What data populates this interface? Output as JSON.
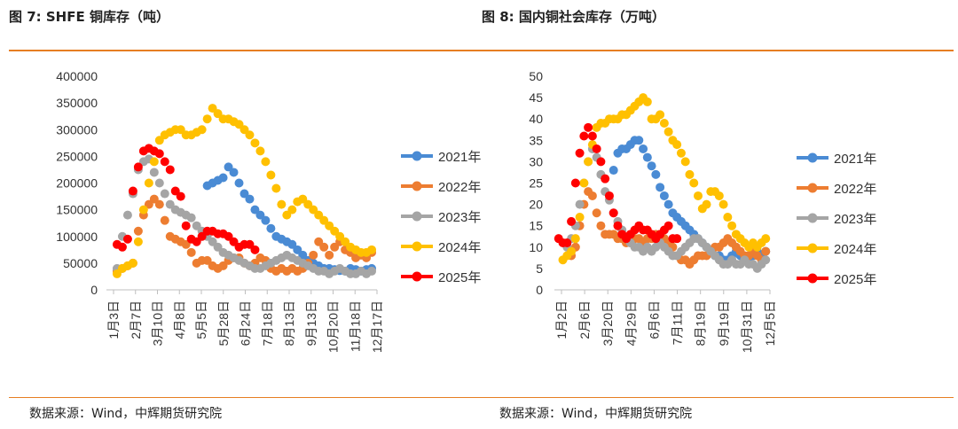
{
  "left_title": "图 7: SHFE 铜库存（吨）",
  "right_title": "图 8: 国内铜社会库存（万吨）",
  "left_source": "数据来源：Wind，中辉期货研究院",
  "right_source": "数据来源：Wind，中辉期货研究院",
  "colors": {
    "2021年": "#4a8bd4",
    "2022年": "#ed7d31",
    "2023年": "#a5a5a5",
    "2024年": "#ffc000",
    "2025年": "#ff0000",
    "rule": "#e67e22"
  },
  "chart_data": [
    {
      "type": "scatter",
      "title": "图 7: SHFE 铜库存（吨）",
      "ylim": [
        0,
        400000
      ],
      "yticks": [
        "400000",
        "350000",
        "300000",
        "250000",
        "200000",
        "150000",
        "100000",
        "50000",
        "0"
      ],
      "xticks": [
        "1月3日",
        "2月7日",
        "3月10日",
        "4月8日",
        "5月5日",
        "5月28日",
        "6月24日",
        "7月18日",
        "8月13日",
        "9月13日",
        "10月20日",
        "11月18日",
        "12月17日"
      ],
      "x_range": [
        1,
        52
      ],
      "legend": "right",
      "series": [
        {
          "name": "2021年",
          "x": [
            20,
            21,
            22,
            23,
            24,
            25,
            26,
            27,
            28,
            29,
            30,
            31,
            32,
            33,
            34,
            35,
            36,
            37,
            38,
            39,
            40,
            41,
            42,
            43,
            44,
            45,
            46,
            47,
            48,
            49,
            50,
            51
          ],
          "y": [
            195000,
            200000,
            205000,
            210000,
            230000,
            220000,
            200000,
            180000,
            170000,
            150000,
            140000,
            130000,
            115000,
            100000,
            95000,
            90000,
            85000,
            75000,
            65000,
            55000,
            50000,
            45000,
            40000,
            40000,
            38000,
            36000,
            35000,
            40000,
            38000,
            35000,
            38000,
            40000
          ]
        },
        {
          "name": "2022年",
          "x": [
            3,
            4,
            5,
            6,
            7,
            8,
            9,
            10,
            11,
            12,
            13,
            14,
            15,
            16,
            17,
            18,
            19,
            20,
            21,
            22,
            23,
            24,
            25,
            26,
            27,
            28,
            29,
            30,
            31,
            32,
            33,
            34,
            35,
            36,
            37,
            38,
            39,
            40,
            41,
            42,
            43,
            44,
            45,
            46,
            47,
            48,
            49,
            50,
            51
          ],
          "y": [
            35000,
            40000,
            45000,
            50000,
            110000,
            140000,
            160000,
            170000,
            160000,
            130000,
            100000,
            95000,
            90000,
            85000,
            70000,
            50000,
            55000,
            55000,
            45000,
            40000,
            45000,
            55000,
            60000,
            60000,
            50000,
            45000,
            50000,
            60000,
            55000,
            40000,
            35000,
            40000,
            35000,
            40000,
            35000,
            40000,
            50000,
            65000,
            90000,
            80000,
            65000,
            80000,
            90000,
            75000,
            70000,
            60000,
            65000,
            60000,
            70000
          ]
        },
        {
          "name": "2023年",
          "x": [
            3,
            4,
            5,
            6,
            7,
            8,
            9,
            10,
            11,
            12,
            13,
            14,
            15,
            16,
            17,
            18,
            19,
            20,
            21,
            22,
            23,
            24,
            25,
            26,
            27,
            28,
            29,
            30,
            31,
            32,
            33,
            34,
            35,
            36,
            37,
            38,
            39,
            40,
            41,
            42,
            43,
            44,
            45,
            46,
            47,
            48,
            49,
            50,
            51
          ],
          "y": [
            40000,
            100000,
            140000,
            180000,
            225000,
            240000,
            245000,
            220000,
            200000,
            180000,
            160000,
            150000,
            145000,
            140000,
            135000,
            120000,
            110000,
            100000,
            90000,
            80000,
            70000,
            65000,
            60000,
            55000,
            50000,
            45000,
            40000,
            40000,
            45000,
            50000,
            55000,
            60000,
            65000,
            60000,
            55000,
            50000,
            45000,
            40000,
            35000,
            35000,
            30000,
            35000,
            40000,
            35000,
            30000,
            30000,
            35000,
            30000,
            35000
          ]
        },
        {
          "name": "2024年",
          "x": [
            3,
            4,
            5,
            6,
            7,
            8,
            9,
            10,
            11,
            12,
            13,
            14,
            15,
            16,
            17,
            18,
            19,
            20,
            21,
            22,
            23,
            24,
            25,
            26,
            27,
            28,
            29,
            30,
            31,
            32,
            33,
            34,
            35,
            36,
            37,
            38,
            39,
            40,
            41,
            42,
            43,
            44,
            45,
            46,
            47,
            48,
            49,
            50,
            51
          ],
          "y": [
            30000,
            40000,
            45000,
            50000,
            90000,
            150000,
            200000,
            240000,
            280000,
            290000,
            295000,
            300000,
            300000,
            290000,
            290000,
            295000,
            300000,
            320000,
            340000,
            330000,
            320000,
            320000,
            315000,
            310000,
            300000,
            290000,
            275000,
            260000,
            240000,
            215000,
            190000,
            160000,
            140000,
            150000,
            165000,
            170000,
            160000,
            150000,
            140000,
            130000,
            120000,
            110000,
            100000,
            90000,
            80000,
            75000,
            70000,
            70000,
            75000
          ]
        },
        {
          "name": "2025年",
          "x": [
            3,
            4,
            5,
            6,
            7,
            8,
            9,
            10,
            11,
            12,
            13,
            14,
            15,
            16,
            17,
            18,
            19,
            20,
            21,
            22,
            23,
            24,
            25,
            26,
            27,
            28,
            29
          ],
          "y": [
            85000,
            80000,
            95000,
            185000,
            230000,
            260000,
            265000,
            260000,
            255000,
            240000,
            225000,
            185000,
            175000,
            120000,
            95000,
            90000,
            100000,
            110000,
            110000,
            105000,
            105000,
            100000,
            90000,
            80000,
            85000,
            85000,
            75000
          ]
        }
      ]
    },
    {
      "type": "scatter",
      "title": "图 8: 国内铜社会库存（万吨）",
      "ylim": [
        0,
        50
      ],
      "yticks": [
        "50",
        "45",
        "40",
        "35",
        "30",
        "25",
        "20",
        "15",
        "10",
        "5",
        "0"
      ],
      "xticks": [
        "1月2日",
        "2月6日",
        "3月20日",
        "4月29日",
        "6月6日",
        "7月11日",
        "8月19日",
        "9月19日",
        "10月31日",
        "12月5日"
      ],
      "x_range": [
        1,
        52
      ],
      "legend": "right",
      "series": [
        {
          "name": "2021年",
          "x": [
            15,
            16,
            17,
            18,
            19,
            20,
            21,
            22,
            23,
            24,
            25,
            26,
            27,
            28,
            29,
            30,
            31,
            32,
            33,
            34,
            35,
            36,
            37,
            38,
            39,
            40,
            41,
            42,
            43,
            44,
            45,
            46,
            47,
            48,
            49,
            50,
            51
          ],
          "y": [
            28,
            32,
            33,
            33,
            34,
            35,
            35,
            33,
            31,
            29,
            27,
            24,
            22,
            20,
            18,
            17,
            16,
            15,
            14,
            13,
            12,
            11,
            10,
            9,
            8,
            8,
            7,
            7,
            8,
            9,
            8,
            7,
            7,
            8,
            9,
            8,
            9
          ]
        },
        {
          "name": "2022年",
          "x": [
            5,
            6,
            7,
            8,
            9,
            10,
            11,
            12,
            13,
            14,
            15,
            16,
            17,
            18,
            19,
            20,
            21,
            22,
            23,
            24,
            25,
            26,
            27,
            28,
            29,
            30,
            31,
            32,
            33,
            34,
            35,
            36,
            37,
            38,
            39,
            40,
            41,
            42,
            43,
            44,
            45,
            46,
            47,
            48,
            49,
            50,
            51
          ],
          "y": [
            8,
            10,
            15,
            20,
            23,
            22,
            18,
            15,
            13,
            13,
            13,
            12,
            12,
            11,
            11,
            12,
            12,
            11,
            12,
            12,
            13,
            13,
            12,
            11,
            10,
            8,
            7,
            7,
            6,
            7,
            8,
            8,
            8,
            9,
            10,
            10,
            11,
            12,
            11,
            10,
            9,
            8,
            8,
            9,
            8,
            7,
            9
          ]
        },
        {
          "name": "2023年",
          "x": [
            4,
            5,
            6,
            7,
            8,
            9,
            10,
            11,
            12,
            13,
            14,
            15,
            16,
            17,
            18,
            19,
            20,
            21,
            22,
            23,
            24,
            25,
            26,
            27,
            28,
            29,
            30,
            31,
            32,
            33,
            34,
            35,
            36,
            37,
            38,
            39,
            40,
            41,
            42,
            43,
            44,
            45,
            46,
            47,
            48,
            49,
            50,
            51
          ],
          "y": [
            10,
            12,
            15,
            20,
            25,
            30,
            33,
            31,
            27,
            23,
            21,
            18,
            16,
            14,
            12,
            11,
            10,
            10,
            9,
            10,
            9,
            10,
            11,
            10,
            9,
            8,
            8,
            9,
            10,
            11,
            12,
            12,
            11,
            10,
            9,
            8,
            7,
            6,
            6,
            7,
            6,
            6,
            7,
            6,
            6,
            5,
            6,
            7
          ]
        },
        {
          "name": "2024年",
          "x": [
            3,
            4,
            5,
            6,
            7,
            8,
            9,
            10,
            11,
            12,
            13,
            14,
            15,
            16,
            17,
            18,
            19,
            20,
            21,
            22,
            23,
            24,
            25,
            26,
            27,
            28,
            29,
            30,
            31,
            32,
            33,
            34,
            35,
            36,
            37,
            38,
            39,
            40,
            41,
            42,
            43,
            44,
            45,
            46,
            47,
            48,
            49,
            50,
            51
          ],
          "y": [
            7,
            8,
            9,
            12,
            17,
            25,
            30,
            34,
            38,
            39,
            39,
            40,
            40,
            40,
            41,
            41,
            42,
            43,
            44,
            45,
            44,
            40,
            40,
            41,
            39,
            37,
            35,
            34,
            32,
            30,
            27,
            25,
            22,
            19,
            20,
            23,
            23,
            22,
            20,
            17,
            15,
            13,
            12,
            11,
            10,
            11,
            10,
            11,
            12
          ]
        },
        {
          "name": "2025年",
          "x": [
            2,
            3,
            4,
            5,
            6,
            7,
            8,
            9,
            10,
            11,
            12,
            13,
            14,
            15,
            16,
            17,
            18,
            19,
            20,
            21,
            22,
            23,
            24,
            25,
            26,
            27,
            28,
            29,
            30
          ],
          "y": [
            12,
            11,
            11,
            16,
            25,
            32,
            36,
            38,
            36,
            33,
            30,
            26,
            22,
            18,
            15,
            13,
            12,
            13,
            14,
            15,
            14,
            14,
            13,
            12,
            13,
            14,
            15,
            12,
            12
          ]
        }
      ]
    }
  ]
}
